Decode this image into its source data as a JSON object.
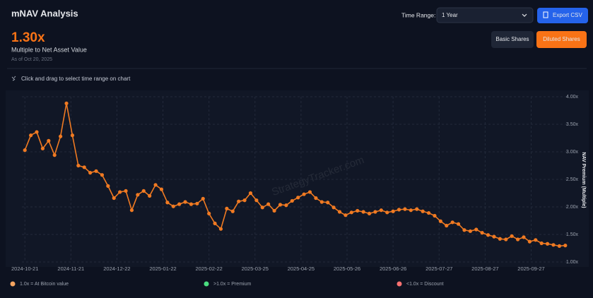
{
  "header": {
    "title": "mNAV Analysis",
    "time_range_label": "Time Range:",
    "time_range_value": "1 Year",
    "export_button": "Export CSV",
    "basic_button": "Basic Shares",
    "diluted_button": "Diluted Shares"
  },
  "summary": {
    "value": "1.30x",
    "caption": "Multiple to Net Asset Value",
    "as_of": "As of Oct 20, 2025"
  },
  "hint": "Click and drag to select time range on chart",
  "watermark": "StrategyTracker.com",
  "legend_notes": [
    {
      "label": "1.0x = At Bitcoin value",
      "color": "#f4a460"
    },
    {
      "label": ">1.0x = Premium",
      "color": "#4ade80"
    },
    {
      "label": "<1.0x = Discount",
      "color": "#f87171"
    }
  ],
  "chart_data": {
    "type": "line",
    "y_label": "NAV Premium (Multiple)",
    "color": "#f07a22",
    "grid": true,
    "x": [
      "2024-10-21",
      "2024-10-25",
      "2024-10-29",
      "2024-11-02",
      "2024-11-06",
      "2024-11-10",
      "2024-11-14",
      "2024-11-18",
      "2024-11-22",
      "2024-11-26",
      "2024-11-30",
      "2024-12-04",
      "2024-12-08",
      "2024-12-12",
      "2024-12-16",
      "2024-12-20",
      "2024-12-24",
      "2024-12-28",
      "2025-01-01",
      "2025-01-05",
      "2025-01-09",
      "2025-01-13",
      "2025-01-17",
      "2025-01-21",
      "2025-01-25",
      "2025-01-29",
      "2025-02-02",
      "2025-02-06",
      "2025-02-10",
      "2025-02-14",
      "2025-02-18",
      "2025-02-22",
      "2025-02-26",
      "2025-03-02",
      "2025-03-06",
      "2025-03-10",
      "2025-03-14",
      "2025-03-18",
      "2025-03-22",
      "2025-03-26",
      "2025-03-30",
      "2025-04-03",
      "2025-04-07",
      "2025-04-11",
      "2025-04-15",
      "2025-04-19",
      "2025-04-23",
      "2025-04-27",
      "2025-05-01",
      "2025-05-05",
      "2025-05-09",
      "2025-05-13",
      "2025-05-17",
      "2025-05-21",
      "2025-05-25",
      "2025-05-29",
      "2025-06-02",
      "2025-06-06",
      "2025-06-10",
      "2025-06-14",
      "2025-06-18",
      "2025-06-22",
      "2025-06-26",
      "2025-06-30",
      "2025-07-04",
      "2025-07-08",
      "2025-07-12",
      "2025-07-16",
      "2025-07-20",
      "2025-07-24",
      "2025-07-28",
      "2025-08-01",
      "2025-08-05",
      "2025-08-09",
      "2025-08-13",
      "2025-08-17",
      "2025-08-21",
      "2025-08-25",
      "2025-08-29",
      "2025-09-02",
      "2025-09-06",
      "2025-09-10",
      "2025-09-14",
      "2025-09-18",
      "2025-09-22",
      "2025-09-26",
      "2025-09-30",
      "2025-10-04",
      "2025-10-08",
      "2025-10-12",
      "2025-10-16",
      "2025-10-20"
    ],
    "series": [
      {
        "name": "mNAV",
        "color": "#f07a22",
        "values": [
          3.03,
          3.3,
          3.36,
          3.06,
          3.2,
          2.94,
          3.28,
          3.88,
          3.3,
          2.75,
          2.72,
          2.62,
          2.65,
          2.58,
          2.38,
          2.16,
          2.27,
          2.29,
          1.94,
          2.22,
          2.29,
          2.2,
          2.4,
          2.32,
          2.08,
          2.01,
          2.05,
          2.09,
          2.05,
          2.06,
          2.15,
          1.88,
          1.7,
          1.6,
          1.97,
          1.92,
          2.1,
          2.12,
          2.25,
          2.12,
          1.99,
          2.05,
          1.93,
          2.04,
          2.03,
          2.11,
          2.17,
          2.23,
          2.27,
          2.16,
          2.09,
          2.08,
          1.99,
          1.91,
          1.85,
          1.9,
          1.93,
          1.91,
          1.88,
          1.91,
          1.94,
          1.9,
          1.92,
          1.95,
          1.96,
          1.94,
          1.96,
          1.92,
          1.89,
          1.84,
          1.74,
          1.66,
          1.72,
          1.69,
          1.58,
          1.56,
          1.59,
          1.53,
          1.49,
          1.46,
          1.42,
          1.41,
          1.47,
          1.41,
          1.45,
          1.37,
          1.4,
          1.34,
          1.33,
          1.31,
          1.29,
          1.3
        ]
      }
    ],
    "xlim": [
      "2024-10-19",
      "2025-10-22"
    ],
    "xticks": [
      "2024-10-21",
      "2024-11-21",
      "2024-12-22",
      "2025-01-22",
      "2025-02-22",
      "2025-03-25",
      "2025-04-25",
      "2025-05-26",
      "2025-06-26",
      "2025-07-27",
      "2025-08-27",
      "2025-09-27"
    ],
    "ylim": [
      1,
      4
    ],
    "yticks": [
      {
        "value": 1,
        "label": "1.00x"
      },
      {
        "value": 1.5,
        "label": "1.50x"
      },
      {
        "value": 2,
        "label": "2.00x"
      },
      {
        "value": 2.5,
        "label": "2.50x"
      },
      {
        "value": 3,
        "label": "3.00x"
      },
      {
        "value": 3.5,
        "label": "3.50x"
      },
      {
        "value": 4,
        "label": "4.00x"
      }
    ]
  }
}
